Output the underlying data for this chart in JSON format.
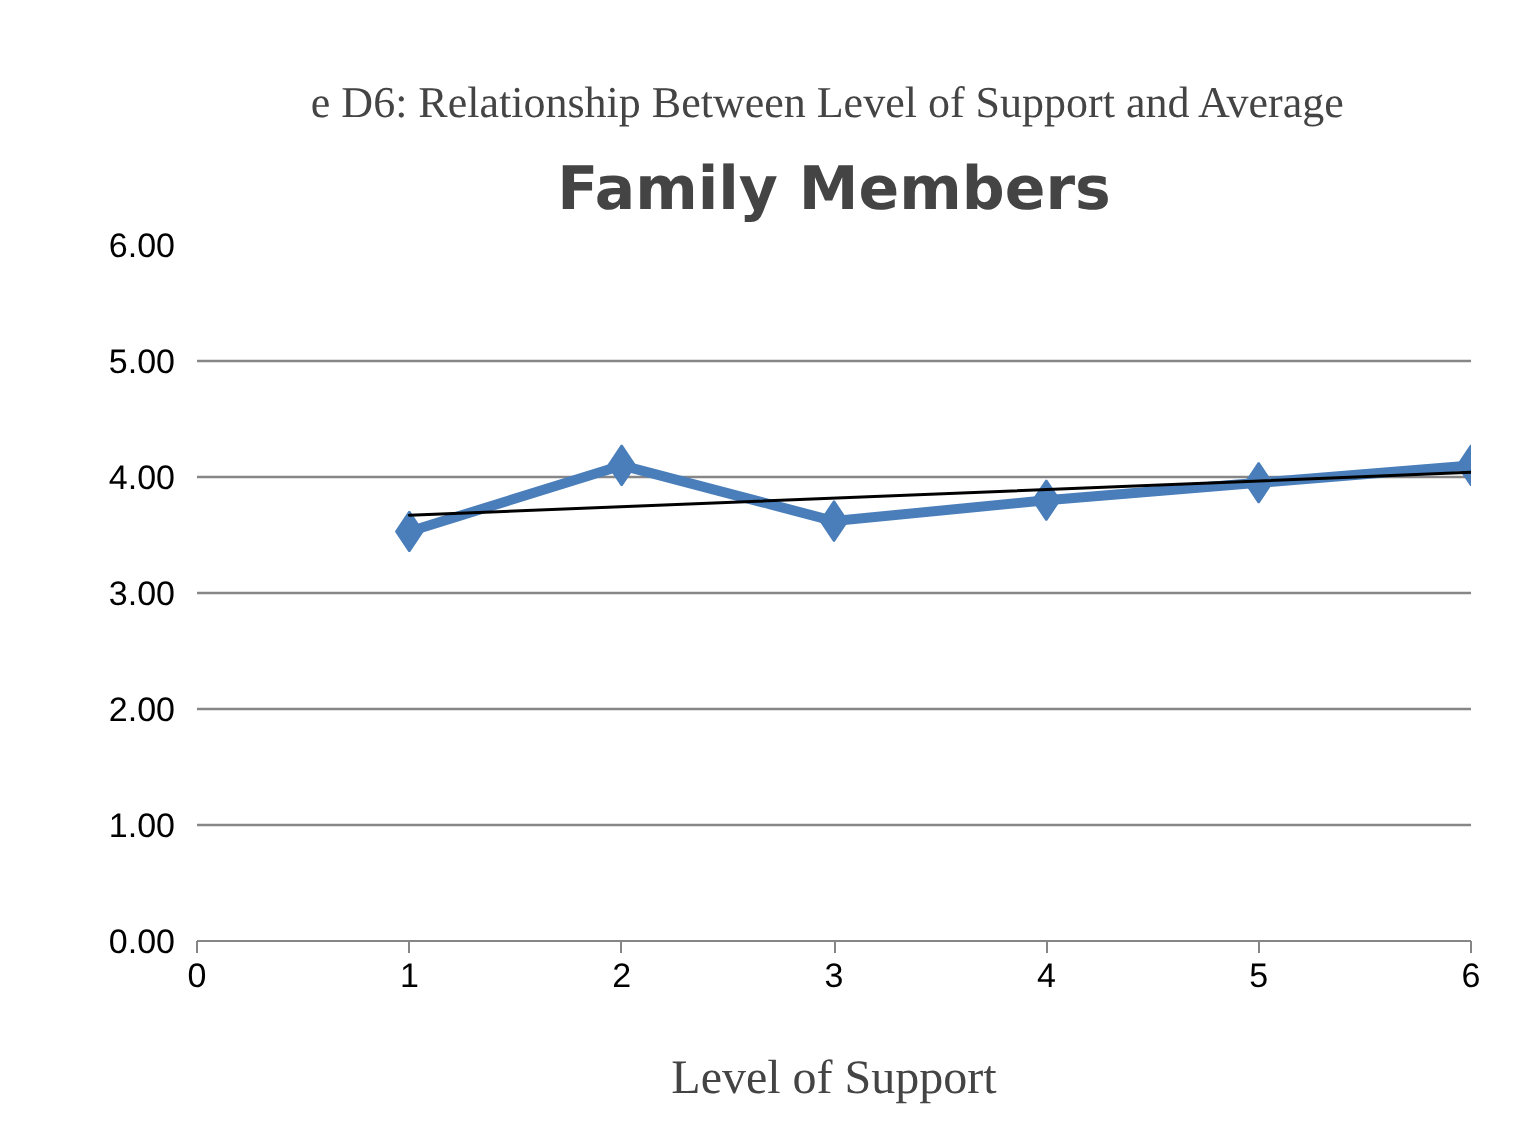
{
  "chart_data": {
    "type": "line",
    "title": "Family Members",
    "subtitle": "e D6:  Relationship Between Level of Support and Average",
    "xlabel": "Level of Support",
    "x": [
      1,
      2,
      3,
      4,
      5,
      6
    ],
    "series": [
      {
        "color": "#4a7ebb",
        "values": [
          3.53,
          4.1,
          3.62,
          3.8,
          3.95,
          4.1
        ],
        "marker": "diamond"
      },
      {
        "type": "line",
        "color": "#000000",
        "x": [
          1,
          6
        ],
        "values": [
          3.67,
          4.04
        ],
        "marker": "none"
      }
    ],
    "xlim": [
      0,
      6
    ],
    "xticks": [
      0,
      1,
      2,
      3,
      4,
      5,
      6
    ],
    "ylim": [
      0,
      6
    ],
    "yticks": [
      {
        "value": 0,
        "label": "0.00"
      },
      {
        "value": 1,
        "label": "1.00"
      },
      {
        "value": 2,
        "label": "2.00"
      },
      {
        "value": 3,
        "label": "3.00"
      },
      {
        "value": 4,
        "label": "4.00"
      },
      {
        "value": 5,
        "label": "5.00"
      },
      {
        "value": 6,
        "label": "6.00"
      }
    ],
    "grid": "y"
  }
}
